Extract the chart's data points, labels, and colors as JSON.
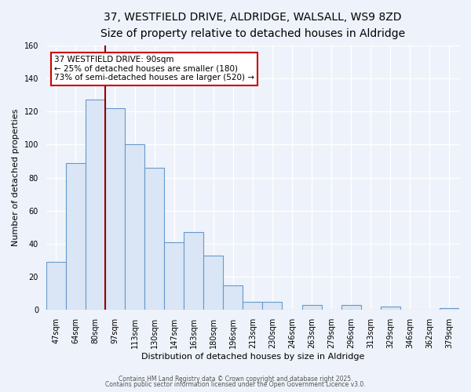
{
  "title": "37, WESTFIELD DRIVE, ALDRIDGE, WALSALL, WS9 8ZD",
  "subtitle": "Size of property relative to detached houses in Aldridge",
  "xlabel": "Distribution of detached houses by size in Aldridge",
  "ylabel": "Number of detached properties",
  "bar_labels": [
    "47sqm",
    "64sqm",
    "80sqm",
    "97sqm",
    "113sqm",
    "130sqm",
    "147sqm",
    "163sqm",
    "180sqm",
    "196sqm",
    "213sqm",
    "230sqm",
    "246sqm",
    "263sqm",
    "279sqm",
    "296sqm",
    "313sqm",
    "329sqm",
    "346sqm",
    "362sqm",
    "379sqm"
  ],
  "bar_values": [
    29,
    89,
    127,
    122,
    100,
    86,
    41,
    47,
    33,
    15,
    5,
    5,
    0,
    3,
    0,
    3,
    0,
    2,
    0,
    0,
    1
  ],
  "bar_color": "#dae6f5",
  "bar_edge_color": "#6699cc",
  "ylim": [
    0,
    160
  ],
  "yticks": [
    0,
    20,
    40,
    60,
    80,
    100,
    120,
    140,
    160
  ],
  "red_line_x": 2.5,
  "annotation_title": "37 WESTFIELD DRIVE: 90sqm",
  "annotation_line1": "← 25% of detached houses are smaller (180)",
  "annotation_line2": "73% of semi-detached houses are larger (520) →",
  "annotation_box_color": "#ffffff",
  "annotation_box_edge_color": "#cc0000",
  "footer1": "Contains HM Land Registry data © Crown copyright and database right 2025.",
  "footer2": "Contains public sector information licensed under the Open Government Licence v3.0.",
  "background_color": "#eef2fa",
  "grid_color": "#ffffff",
  "title_fontsize": 10,
  "subtitle_fontsize": 9,
  "xlabel_fontsize": 8,
  "ylabel_fontsize": 8,
  "tick_fontsize": 7,
  "annotation_fontsize": 7.5,
  "footer_fontsize": 5.5
}
